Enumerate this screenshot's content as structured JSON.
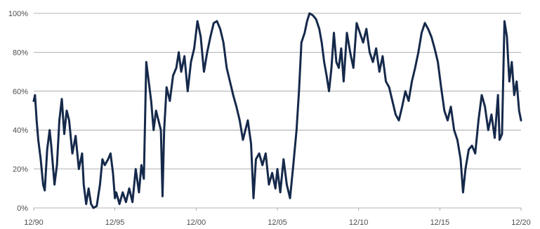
{
  "chart_data": {
    "type": "line",
    "title": "",
    "xlabel": "",
    "ylabel": "",
    "ylim": [
      0,
      100
    ],
    "y_ticks": [
      "0%",
      "20%",
      "40%",
      "60%",
      "80%",
      "100%"
    ],
    "y_tick_values": [
      0,
      20,
      40,
      60,
      80,
      100
    ],
    "x_ticks": [
      "12/90",
      "12/95",
      "12/00",
      "12/05",
      "12/10",
      "12/15",
      "12/20"
    ],
    "x_tick_values": [
      1990.92,
      1995.92,
      2000.92,
      2005.92,
      2010.92,
      2015.92,
      2020.92
    ],
    "xlim": [
      1990.92,
      2020.92
    ],
    "grid": "horizontal",
    "line_color": "#15294a",
    "series": [
      {
        "values": [
          [
            1990.92,
            55
          ],
          [
            1991.0,
            58
          ],
          [
            1991.1,
            45
          ],
          [
            1991.2,
            35
          ],
          [
            1991.35,
            25
          ],
          [
            1991.5,
            12
          ],
          [
            1991.6,
            9
          ],
          [
            1991.75,
            30
          ],
          [
            1991.9,
            40
          ],
          [
            1992.0,
            32
          ],
          [
            1992.2,
            12
          ],
          [
            1992.35,
            22
          ],
          [
            1992.5,
            45
          ],
          [
            1992.65,
            56
          ],
          [
            1992.8,
            38
          ],
          [
            1992.95,
            50
          ],
          [
            1993.1,
            45
          ],
          [
            1993.3,
            28
          ],
          [
            1993.5,
            37
          ],
          [
            1993.7,
            20
          ],
          [
            1993.9,
            28
          ],
          [
            1994.0,
            12
          ],
          [
            1994.15,
            2
          ],
          [
            1994.3,
            10
          ],
          [
            1994.45,
            2
          ],
          [
            1994.6,
            0
          ],
          [
            1994.8,
            1
          ],
          [
            1995.0,
            12
          ],
          [
            1995.15,
            25
          ],
          [
            1995.3,
            22
          ],
          [
            1995.5,
            25
          ],
          [
            1995.65,
            28
          ],
          [
            1995.8,
            18
          ],
          [
            1995.92,
            5
          ],
          [
            1996.0,
            8
          ],
          [
            1996.2,
            2
          ],
          [
            1996.4,
            8
          ],
          [
            1996.6,
            3
          ],
          [
            1996.8,
            10
          ],
          [
            1997.0,
            3
          ],
          [
            1997.2,
            20
          ],
          [
            1997.4,
            8
          ],
          [
            1997.55,
            22
          ],
          [
            1997.7,
            15
          ],
          [
            1997.85,
            75
          ],
          [
            1998.0,
            65
          ],
          [
            1998.15,
            55
          ],
          [
            1998.3,
            40
          ],
          [
            1998.45,
            50
          ],
          [
            1998.6,
            45
          ],
          [
            1998.75,
            40
          ],
          [
            1998.85,
            6
          ],
          [
            1998.95,
            40
          ],
          [
            1999.1,
            62
          ],
          [
            1999.3,
            55
          ],
          [
            1999.5,
            68
          ],
          [
            1999.7,
            72
          ],
          [
            1999.85,
            80
          ],
          [
            2000.0,
            70
          ],
          [
            2000.2,
            78
          ],
          [
            2000.4,
            60
          ],
          [
            2000.6,
            75
          ],
          [
            2000.8,
            82
          ],
          [
            2001.0,
            96
          ],
          [
            2001.2,
            88
          ],
          [
            2001.4,
            70
          ],
          [
            2001.6,
            80
          ],
          [
            2001.8,
            88
          ],
          [
            2002.0,
            95
          ],
          [
            2002.2,
            96
          ],
          [
            2002.4,
            92
          ],
          [
            2002.6,
            85
          ],
          [
            2002.8,
            72
          ],
          [
            2003.0,
            65
          ],
          [
            2003.2,
            58
          ],
          [
            2003.4,
            52
          ],
          [
            2003.6,
            45
          ],
          [
            2003.8,
            35
          ],
          [
            2003.95,
            40
          ],
          [
            2004.1,
            45
          ],
          [
            2004.3,
            33
          ],
          [
            2004.45,
            5
          ],
          [
            2004.6,
            25
          ],
          [
            2004.8,
            28
          ],
          [
            2005.0,
            22
          ],
          [
            2005.2,
            28
          ],
          [
            2005.4,
            12
          ],
          [
            2005.6,
            18
          ],
          [
            2005.8,
            10
          ],
          [
            2005.92,
            20
          ],
          [
            2006.1,
            8
          ],
          [
            2006.3,
            25
          ],
          [
            2006.5,
            12
          ],
          [
            2006.7,
            5
          ],
          [
            2006.9,
            22
          ],
          [
            2007.1,
            40
          ],
          [
            2007.25,
            60
          ],
          [
            2007.4,
            85
          ],
          [
            2007.6,
            90
          ],
          [
            2007.75,
            96
          ],
          [
            2007.9,
            100
          ],
          [
            2008.1,
            99
          ],
          [
            2008.3,
            97
          ],
          [
            2008.5,
            92
          ],
          [
            2008.65,
            85
          ],
          [
            2008.8,
            75
          ],
          [
            2008.95,
            68
          ],
          [
            2009.1,
            60
          ],
          [
            2009.25,
            72
          ],
          [
            2009.4,
            90
          ],
          [
            2009.55,
            75
          ],
          [
            2009.7,
            72
          ],
          [
            2009.85,
            82
          ],
          [
            2010.0,
            65
          ],
          [
            2010.2,
            90
          ],
          [
            2010.4,
            80
          ],
          [
            2010.6,
            72
          ],
          [
            2010.8,
            95
          ],
          [
            2011.0,
            90
          ],
          [
            2011.2,
            85
          ],
          [
            2011.4,
            92
          ],
          [
            2011.6,
            80
          ],
          [
            2011.8,
            75
          ],
          [
            2012.0,
            82
          ],
          [
            2012.2,
            70
          ],
          [
            2012.4,
            78
          ],
          [
            2012.6,
            65
          ],
          [
            2012.8,
            62
          ],
          [
            2013.0,
            55
          ],
          [
            2013.2,
            48
          ],
          [
            2013.4,
            45
          ],
          [
            2013.6,
            52
          ],
          [
            2013.8,
            60
          ],
          [
            2014.0,
            55
          ],
          [
            2014.2,
            65
          ],
          [
            2014.4,
            72
          ],
          [
            2014.6,
            80
          ],
          [
            2014.8,
            90
          ],
          [
            2015.0,
            95
          ],
          [
            2015.2,
            92
          ],
          [
            2015.4,
            88
          ],
          [
            2015.6,
            82
          ],
          [
            2015.8,
            75
          ],
          [
            2016.0,
            62
          ],
          [
            2016.2,
            50
          ],
          [
            2016.4,
            45
          ],
          [
            2016.6,
            52
          ],
          [
            2016.8,
            40
          ],
          [
            2017.0,
            35
          ],
          [
            2017.2,
            25
          ],
          [
            2017.35,
            8
          ],
          [
            2017.5,
            20
          ],
          [
            2017.7,
            30
          ],
          [
            2017.9,
            32
          ],
          [
            2018.1,
            28
          ],
          [
            2018.3,
            45
          ],
          [
            2018.5,
            58
          ],
          [
            2018.7,
            52
          ],
          [
            2018.9,
            40
          ],
          [
            2019.1,
            48
          ],
          [
            2019.3,
            36
          ],
          [
            2019.5,
            58
          ],
          [
            2019.6,
            35
          ],
          [
            2019.75,
            38
          ],
          [
            2019.9,
            96
          ],
          [
            2020.05,
            88
          ],
          [
            2020.2,
            65
          ],
          [
            2020.35,
            75
          ],
          [
            2020.5,
            58
          ],
          [
            2020.65,
            65
          ],
          [
            2020.8,
            50
          ],
          [
            2020.92,
            45
          ]
        ]
      }
    ]
  }
}
